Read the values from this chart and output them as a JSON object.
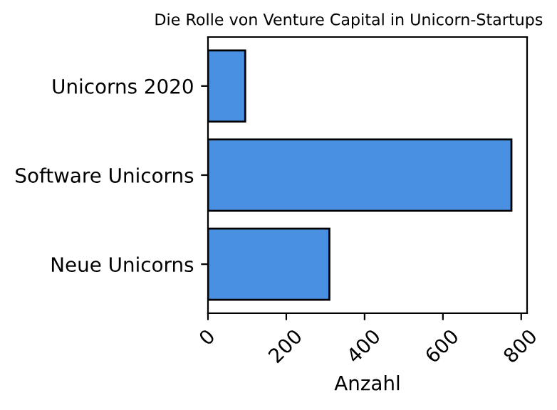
{
  "chart_data": {
    "type": "bar",
    "orientation": "horizontal",
    "title": "Die Rolle von Venture Capital in Unicorn-Startups",
    "xlabel": "Anzahl",
    "categories": [
      "Unicorns 2020",
      "Software Unicorns",
      "Neue Unicorns"
    ],
    "values": [
      95,
      775,
      310
    ],
    "color": "#4a90e2",
    "xlim": [
      0,
      815
    ],
    "xticks": [
      0,
      200,
      400,
      600,
      800
    ],
    "grid": false,
    "legend": false
  }
}
